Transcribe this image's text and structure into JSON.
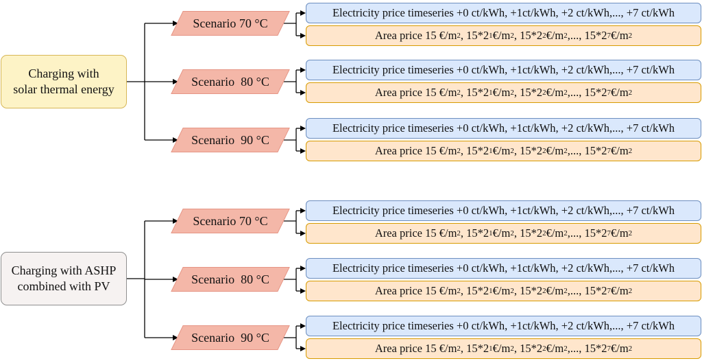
{
  "roots": [
    {
      "line1": "Charging with",
      "line2": "solar thermal energy"
    },
    {
      "line1": "Charging with ASHP",
      "line2": "combined with PV"
    }
  ],
  "scenarios": [
    "Scenario 70 °C",
    "Scenario  80 °C",
    "Scenario  90 °C"
  ],
  "electricity_label": "Electricity price timeseries +0 ct/kWh, +1ct/kWh, +2 ct/kWh,..., +7 ct/kWh",
  "area_label": {
    "p1": "Area price 15 €/m",
    "s1": "2",
    "p2": ", 15*2",
    "s2": "1",
    "p3": " €/m",
    "s3": "2",
    "p4": ", 15*2",
    "s4": "2",
    "p5": " €/m",
    "s5": "2",
    "p6": ",..., 15*2",
    "s6": "7",
    "p7": " €/m",
    "s7": "2"
  },
  "colors": {
    "root1_fill": "#fdf3c6",
    "root2_fill": "#f6f2f1",
    "scenario_fill": "#f4b7a8",
    "electricity_fill": "#dae8fc",
    "area_fill": "#ffe6cc"
  }
}
